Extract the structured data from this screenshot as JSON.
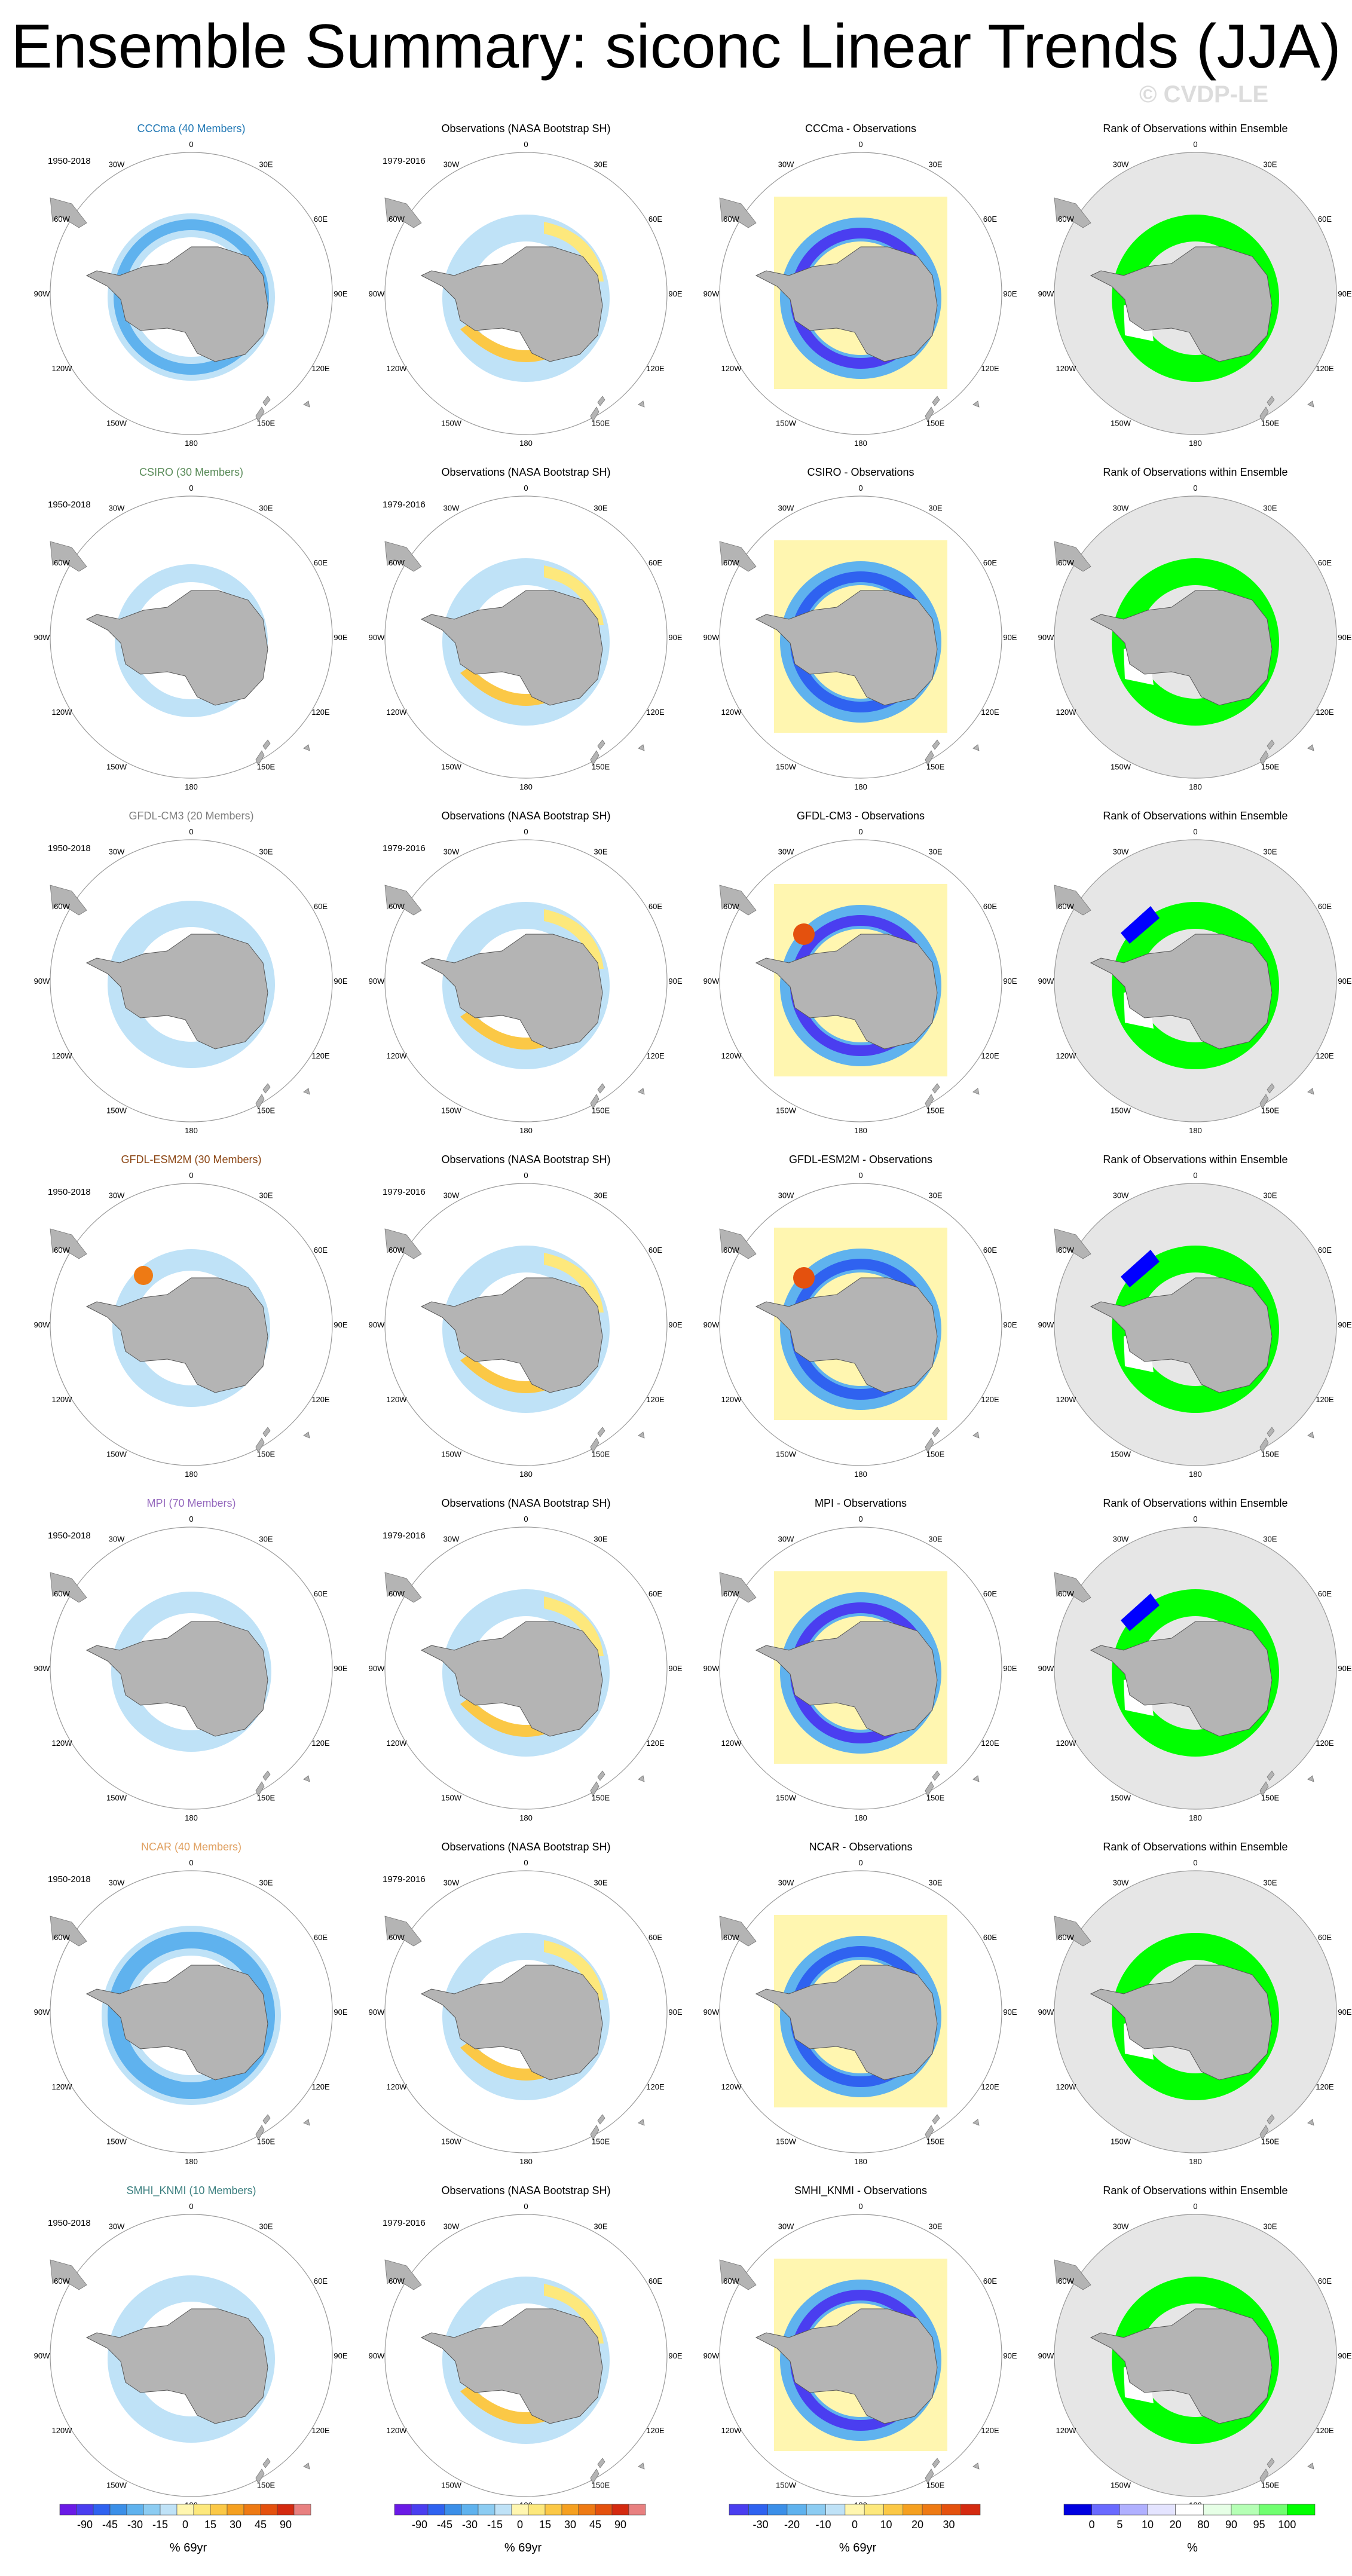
{
  "title": "Ensemble Summary: siconc Linear Trends (JJA)",
  "watermark": "© CVDP-LE",
  "panel_titles": {
    "obs": "Observations (NASA Bootstrap SH)",
    "rank": "Rank of Observations within Ensemble",
    "diff_suffix": " - Observations"
  },
  "period_labels": {
    "model": "1950-2018",
    "obs": "1979-2016"
  },
  "lon_labels": [
    "0",
    "30E",
    "60E",
    "90E",
    "120E",
    "150E",
    "180",
    "150W",
    "120W",
    "90W",
    "60W",
    "30W"
  ],
  "rows": [
    {
      "title": "CCCma (40 Members)",
      "diff_title": "CCCma - Observations",
      "color": "#1f77b4"
    },
    {
      "title": "CSIRO (30 Members)",
      "diff_title": "CSIRO - Observations",
      "color": "#5b8c5a"
    },
    {
      "title": "GFDL-CM3 (20 Members)",
      "diff_title": "GFDL-CM3 - Observations",
      "color": "#7f7f7f"
    },
    {
      "title": "GFDL-ESM2M (30 Members)",
      "diff_title": "GFDL-ESM2M - Observations",
      "color": "#8b4513"
    },
    {
      "title": "MPI (70 Members)",
      "diff_title": "MPI - Observations",
      "color": "#9467bd"
    },
    {
      "title": "NCAR (40 Members)",
      "diff_title": "NCAR - Observations",
      "color": "#e0a060"
    },
    {
      "title": "SMHI_KNMI (10 Members)",
      "diff_title": "SMHI_KNMI - Observations",
      "color": "#3b7f7f"
    }
  ],
  "colorbars": {
    "trend": {
      "ticks": [
        "-90",
        "-45",
        "-30",
        "-15",
        "0",
        "15",
        "30",
        "45",
        "90"
      ],
      "unit": "% 69yr"
    },
    "trend_obs": {
      "ticks": [
        "-90",
        "-45",
        "-30",
        "-15",
        "0",
        "15",
        "30",
        "45",
        "90"
      ],
      "unit": "% 69yr"
    },
    "diff": {
      "ticks": [
        "-30",
        "-20",
        "-10",
        "0",
        "10",
        "20",
        "30"
      ],
      "unit": "% 69yr"
    },
    "rank": {
      "ticks": [
        "0",
        "5",
        "10",
        "20",
        "80",
        "90",
        "95",
        "100"
      ],
      "unit": "%"
    }
  },
  "colors": {
    "land": "#b4b4b4",
    "rank_ocean": "#e6e6e6",
    "rank_green": "#00ff00",
    "rank_blue": "#0000ff",
    "trend_palette": [
      "#6a1ae6",
      "#4a3ef0",
      "#2f62f0",
      "#3b8fe8",
      "#5fb2ee",
      "#8cccf2",
      "#bfe2f7",
      "#fff6b0",
      "#fde87c",
      "#fbc846",
      "#f5a020",
      "#ee7a14",
      "#e4510e",
      "#d42a10",
      "#e88080"
    ],
    "rank_palette": [
      "#0000e0",
      "#6a6aff",
      "#b0b0ff",
      "#e4e4ff",
      "#ffffff",
      "#e6ffe6",
      "#b5ffb5",
      "#70ff70",
      "#00ff00"
    ]
  }
}
